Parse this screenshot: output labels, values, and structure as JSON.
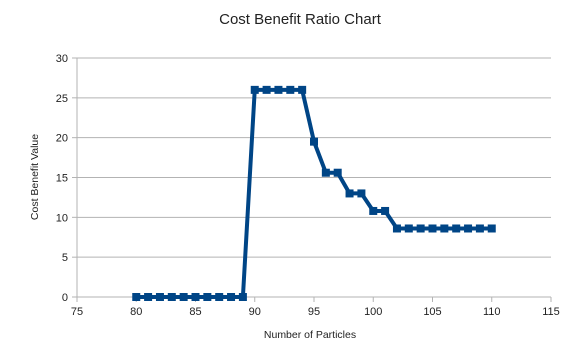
{
  "chart_data": {
    "type": "line",
    "title": "Cost Benefit Ratio Chart",
    "xlabel": "Number of Particles",
    "ylabel": "Cost Benefit Value",
    "xlim": [
      75,
      115
    ],
    "ylim": [
      0,
      30
    ],
    "x_ticks": [
      75,
      80,
      85,
      90,
      95,
      100,
      105,
      110,
      115
    ],
    "y_ticks": [
      0,
      5,
      10,
      15,
      20,
      25,
      30
    ],
    "x_tick_labels": [
      "75",
      "80",
      "85",
      "90",
      "95",
      "100",
      "105",
      "110",
      "115"
    ],
    "y_tick_labels": [
      "0",
      "5",
      "10",
      "15",
      "20",
      "25",
      "30"
    ],
    "grid": "horizontal",
    "legend": "none",
    "series": [
      {
        "color": "#004586",
        "marker": "square",
        "x": [
          80,
          81,
          82,
          83,
          84,
          85,
          86,
          87,
          88,
          89,
          90,
          91,
          92,
          93,
          94,
          95,
          96,
          97,
          98,
          99,
          100,
          101,
          102,
          103,
          104,
          105,
          106,
          107,
          108,
          109,
          110
        ],
        "y": [
          0,
          0,
          0,
          0,
          0,
          0,
          0,
          0,
          0,
          0,
          26,
          26,
          26,
          26,
          26,
          19.5,
          15.6,
          15.6,
          13,
          13,
          10.8,
          10.8,
          8.6,
          8.6,
          8.6,
          8.6,
          8.6,
          8.6,
          8.6,
          8.6,
          8.6
        ]
      }
    ]
  }
}
